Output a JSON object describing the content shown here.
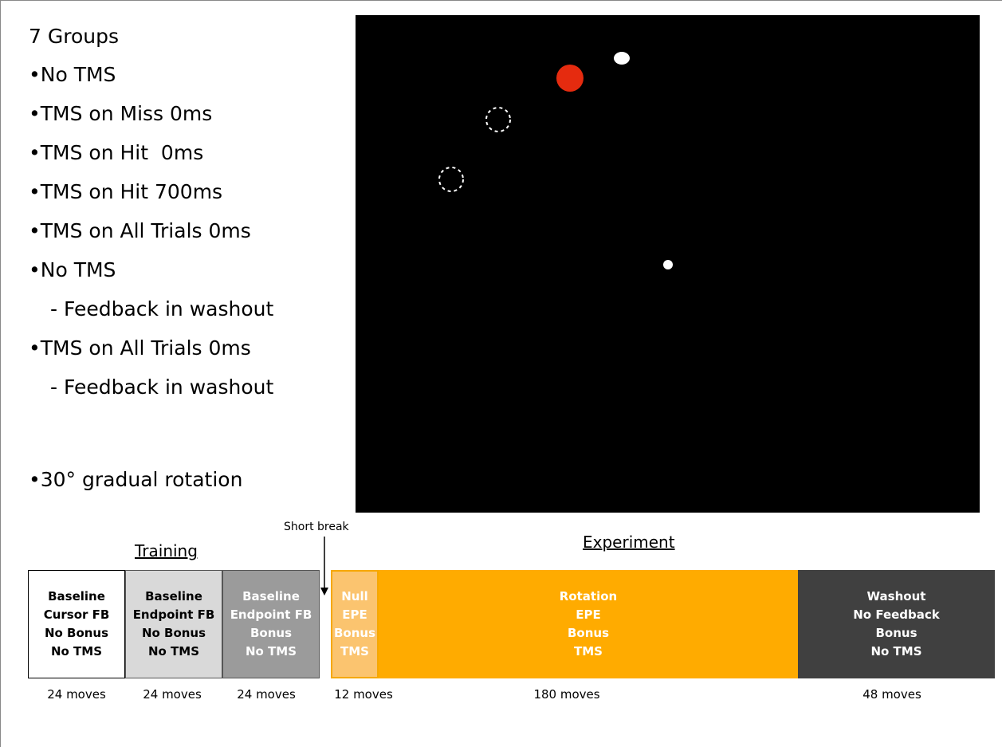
{
  "title": "7 Groups",
  "groups": [
    {
      "label": "No TMS"
    },
    {
      "label": "TMS on Miss 0ms"
    },
    {
      "label": "TMS on Hit  0ms"
    },
    {
      "label": "TMS on Hit 700ms"
    },
    {
      "label": "TMS on All Trials 0ms"
    },
    {
      "label": "No TMS",
      "note": "Feedback in washout"
    },
    {
      "label": "TMS on All Trials 0ms",
      "note": "Feedback in washout"
    }
  ],
  "extra": "30° gradual rotation",
  "timeline": {
    "training_label": "Training",
    "break_label": "Short break",
    "experiment_label": "Experiment",
    "phases": [
      {
        "lines": [
          "Baseline",
          "Cursor FB",
          "No Bonus",
          "No TMS"
        ],
        "moves": "24 moves"
      },
      {
        "lines": [
          "Baseline",
          "Endpoint FB",
          "No Bonus",
          "No TMS"
        ],
        "moves": "24 moves"
      },
      {
        "lines": [
          "Baseline",
          "Endpoint FB",
          "Bonus",
          "No TMS"
        ],
        "moves": "24 moves"
      },
      {
        "lines": [
          "Null",
          "EPE",
          "Bonus",
          "TMS"
        ],
        "moves": "12 moves"
      },
      {
        "lines": [
          "Rotation",
          "EPE",
          "Bonus",
          "TMS"
        ],
        "moves": "180 moves"
      },
      {
        "lines": [
          "Washout",
          "No Feedback",
          "Bonus",
          "No TMS"
        ],
        "moves": "48 moves"
      }
    ]
  }
}
